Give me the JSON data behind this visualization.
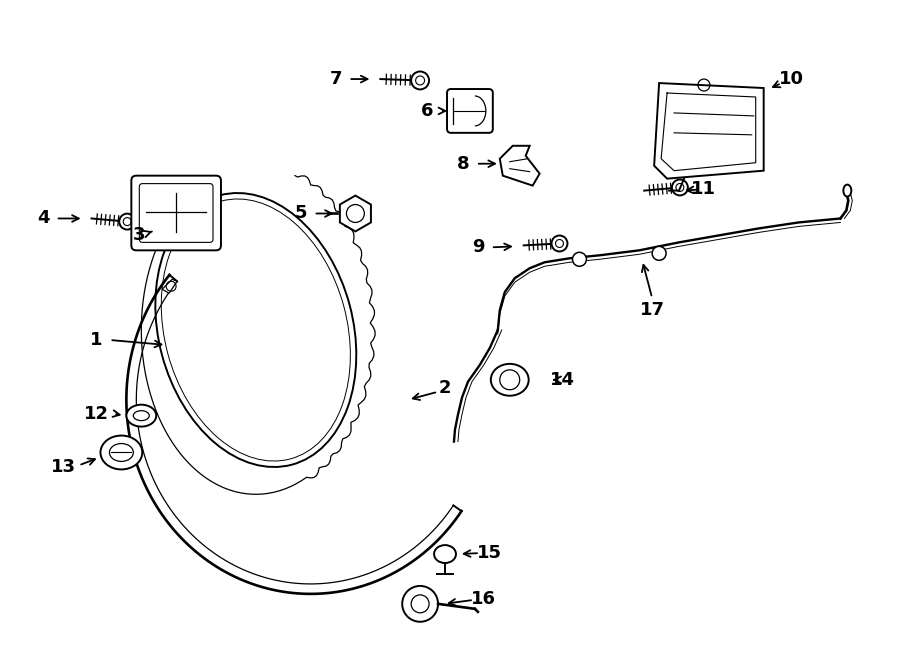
{
  "background_color": "#ffffff",
  "line_color": "#000000",
  "text_color": "#000000",
  "figsize": [
    9.0,
    6.62
  ],
  "dpi": 100
}
